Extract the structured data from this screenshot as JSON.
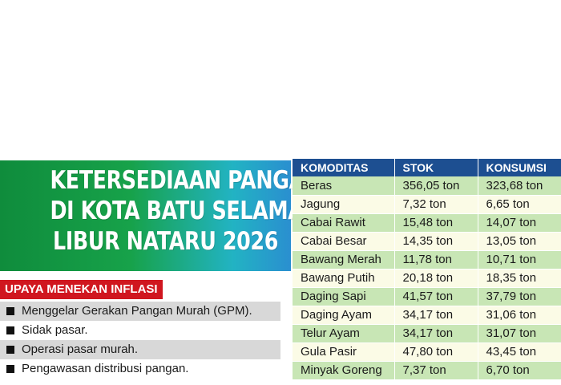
{
  "headline": {
    "lines": [
      "KETERSEDIAAN PANGAN",
      "DI KOTA BATU SELAMA",
      "LIBUR NATARU 2026"
    ]
  },
  "inflasi": {
    "title": "UPAYA MENEKAN INFLASI",
    "items": [
      "Menggelar Gerakan Pangan Murah (GPM).",
      "Sidak pasar.",
      "Operasi pasar murah.",
      "Pengawasan distribusi pangan."
    ]
  },
  "table": {
    "headers": [
      "KOMODITAS",
      "STOK",
      "KONSUMSI"
    ],
    "rows": [
      [
        "Beras",
        "356,05 ton",
        "323,68 ton"
      ],
      [
        "Jagung",
        "7,32 ton",
        "6,65 ton"
      ],
      [
        "Cabai Rawit",
        "15,48 ton",
        "14,07 ton"
      ],
      [
        "Cabai Besar",
        "14,35 ton",
        "13,05 ton"
      ],
      [
        "Bawang Merah",
        "11,78 ton",
        "10,71 ton"
      ],
      [
        "Bawang Putih",
        "20,18 ton",
        "18,35 ton"
      ],
      [
        "Daging Sapi",
        "41,57 ton",
        "37,79 ton"
      ],
      [
        "Daging Ayam",
        "34,17 ton",
        "31,06 ton"
      ],
      [
        "Telur Ayam",
        "34,17 ton",
        "31,07 ton"
      ],
      [
        "Gula Pasir",
        "47,80 ton",
        "43,45 ton"
      ],
      [
        "Minyak Goreng",
        "7,37 ton",
        "6,70 ton"
      ]
    ]
  },
  "colors": {
    "banner_green": "#0f8c3c",
    "banner_blue": "#2a8fd0",
    "inflasi_red": "#d0161f",
    "table_header": "#1d4f91",
    "row_green": "#c8e6b5",
    "row_cream": "#fbfbe6"
  }
}
